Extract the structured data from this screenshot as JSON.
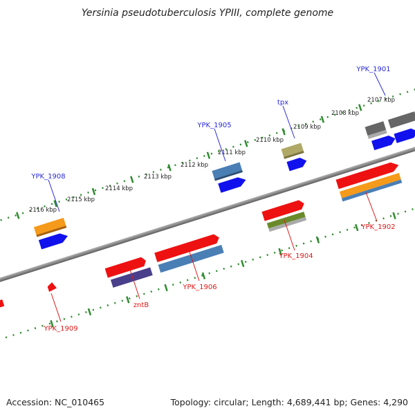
{
  "title": "Yersinia pseudotuberculosis YPIII, complete genome",
  "footer": {
    "accession": "Accession: NC_010465",
    "summary": "Topology: circular; Length: 4,689,441 bp; Genes: 4,290"
  },
  "ticks": [
    "2107 kbp",
    "2108 kbp",
    "2109 kbp",
    "2110 kbp",
    "2111 kbp",
    "2112 kbp",
    "2113 kbp",
    "2114 kbp",
    "2115 kbp",
    "2116 kbp"
  ],
  "labels": {
    "ypk1901": "YPK_1901",
    "tpx": "tpx",
    "ypk1905": "YPK_1905",
    "ypk1908": "YPK_1908",
    "ypk1902": "YPK_1902",
    "ypk1904": "YPK_1904",
    "ypk1906": "YPK_1906",
    "zntb": "zntB",
    "ypk1909": "YPK_1909"
  },
  "colors": {
    "backbone": "#888888",
    "tick_track": "#2e8b2e",
    "label_blue": "#2a2ad8",
    "label_red": "#e01818",
    "gene_red": "#ee1111",
    "gene_blue": "#1111ee",
    "gene_orange": "#f59a1a",
    "gene_steel": "#4a7fb5",
    "gene_lavender": "#7b6fcf",
    "gene_darkpurple": "#4a3f8a",
    "gene_olive": "#6a8a2a",
    "gene_khaki": "#b0a866",
    "gene_gray": "#666666"
  }
}
